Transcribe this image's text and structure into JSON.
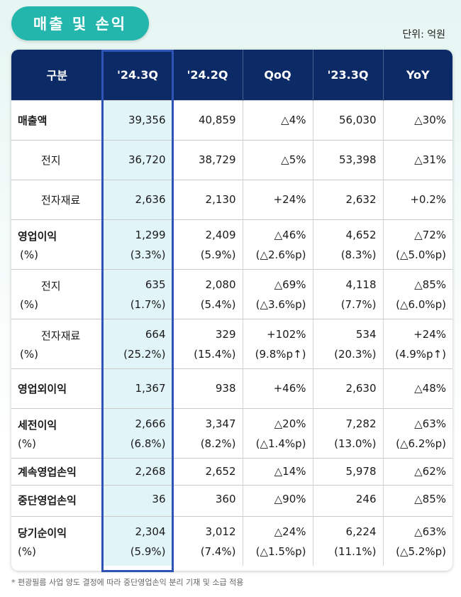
{
  "title": "매출 및 손익",
  "unit": "단위: 억원",
  "table": {
    "headers": [
      "구분",
      "'24.3Q",
      "'24.2Q",
      "QoQ",
      "'23.3Q",
      "YoY"
    ],
    "rows": [
      {
        "label": "매출액",
        "values": [
          "39,356",
          "40,859",
          "△4%",
          "56,030",
          "△30%"
        ]
      },
      {
        "label": "전지",
        "values": [
          "36,720",
          "38,729",
          "△5%",
          "53,398",
          "△31%"
        ]
      },
      {
        "label": "전자재료",
        "values": [
          "2,636",
          "2,130",
          "+24%",
          "2,632",
          "+0.2%"
        ]
      },
      {
        "label": "영업이익",
        "values": [
          "1,299",
          "2,409",
          "△46%",
          "4,652",
          "△72%"
        ]
      },
      {
        "label": "(%)",
        "values": [
          "(3.3%)",
          "(5.9%)",
          "(△2.6%p)",
          "(8.3%)",
          "(△5.0%p)"
        ]
      },
      {
        "label": "전지",
        "values": [
          "635",
          "2,080",
          "△69%",
          "4,118",
          "△85%"
        ]
      },
      {
        "label": "(%)",
        "values": [
          "(1.7%)",
          "(5.4%)",
          "(△3.6%p)",
          "(7.7%)",
          "(△6.0%p)"
        ]
      },
      {
        "label": "전자재료",
        "values": [
          "664",
          "329",
          "+102%",
          "534",
          "+24%"
        ]
      },
      {
        "label": "(%)",
        "values": [
          "(25.2%)",
          "(15.4%)",
          "(9.8%p↑)",
          "(20.3%)",
          "(4.9%p↑)"
        ]
      },
      {
        "label": "영업외이익",
        "values": [
          "1,367",
          "938",
          "+46%",
          "2,630",
          "△48%"
        ]
      },
      {
        "label": "세전이익",
        "values": [
          "2,666",
          "3,347",
          "△20%",
          "7,282",
          "△63%"
        ]
      },
      {
        "label": "(%)",
        "values": [
          "(6.8%)",
          "(8.2%)",
          "(△1.4%p)",
          "(13.0%)",
          "(△6.2%p)"
        ]
      },
      {
        "label": "계속영업손익",
        "values": [
          "2,268",
          "2,652",
          "△14%",
          "5,978",
          "△62%"
        ]
      },
      {
        "label": "중단영업손익",
        "values": [
          "36",
          "360",
          "△90%",
          "246",
          "△85%"
        ]
      },
      {
        "label": "당기순이익",
        "values": [
          "2,304",
          "3,012",
          "△24%",
          "6,224",
          "△63%"
        ]
      },
      {
        "label": "(%)",
        "values": [
          "(5.9%)",
          "(7.4%)",
          "(△1.5%p)",
          "(11.1%)",
          "(△5.2%p)"
        ]
      }
    ]
  },
  "footnote": "* 편광필름 사업 양도 결정에 따라 중단영업손익 분리 기재 및 소급 적용",
  "colors": {
    "header_bg": "#0c2a66",
    "title_pill": "#23b6ad",
    "highlight_border": "#2e55b6",
    "highlight_fill": "#e1f4f8"
  }
}
